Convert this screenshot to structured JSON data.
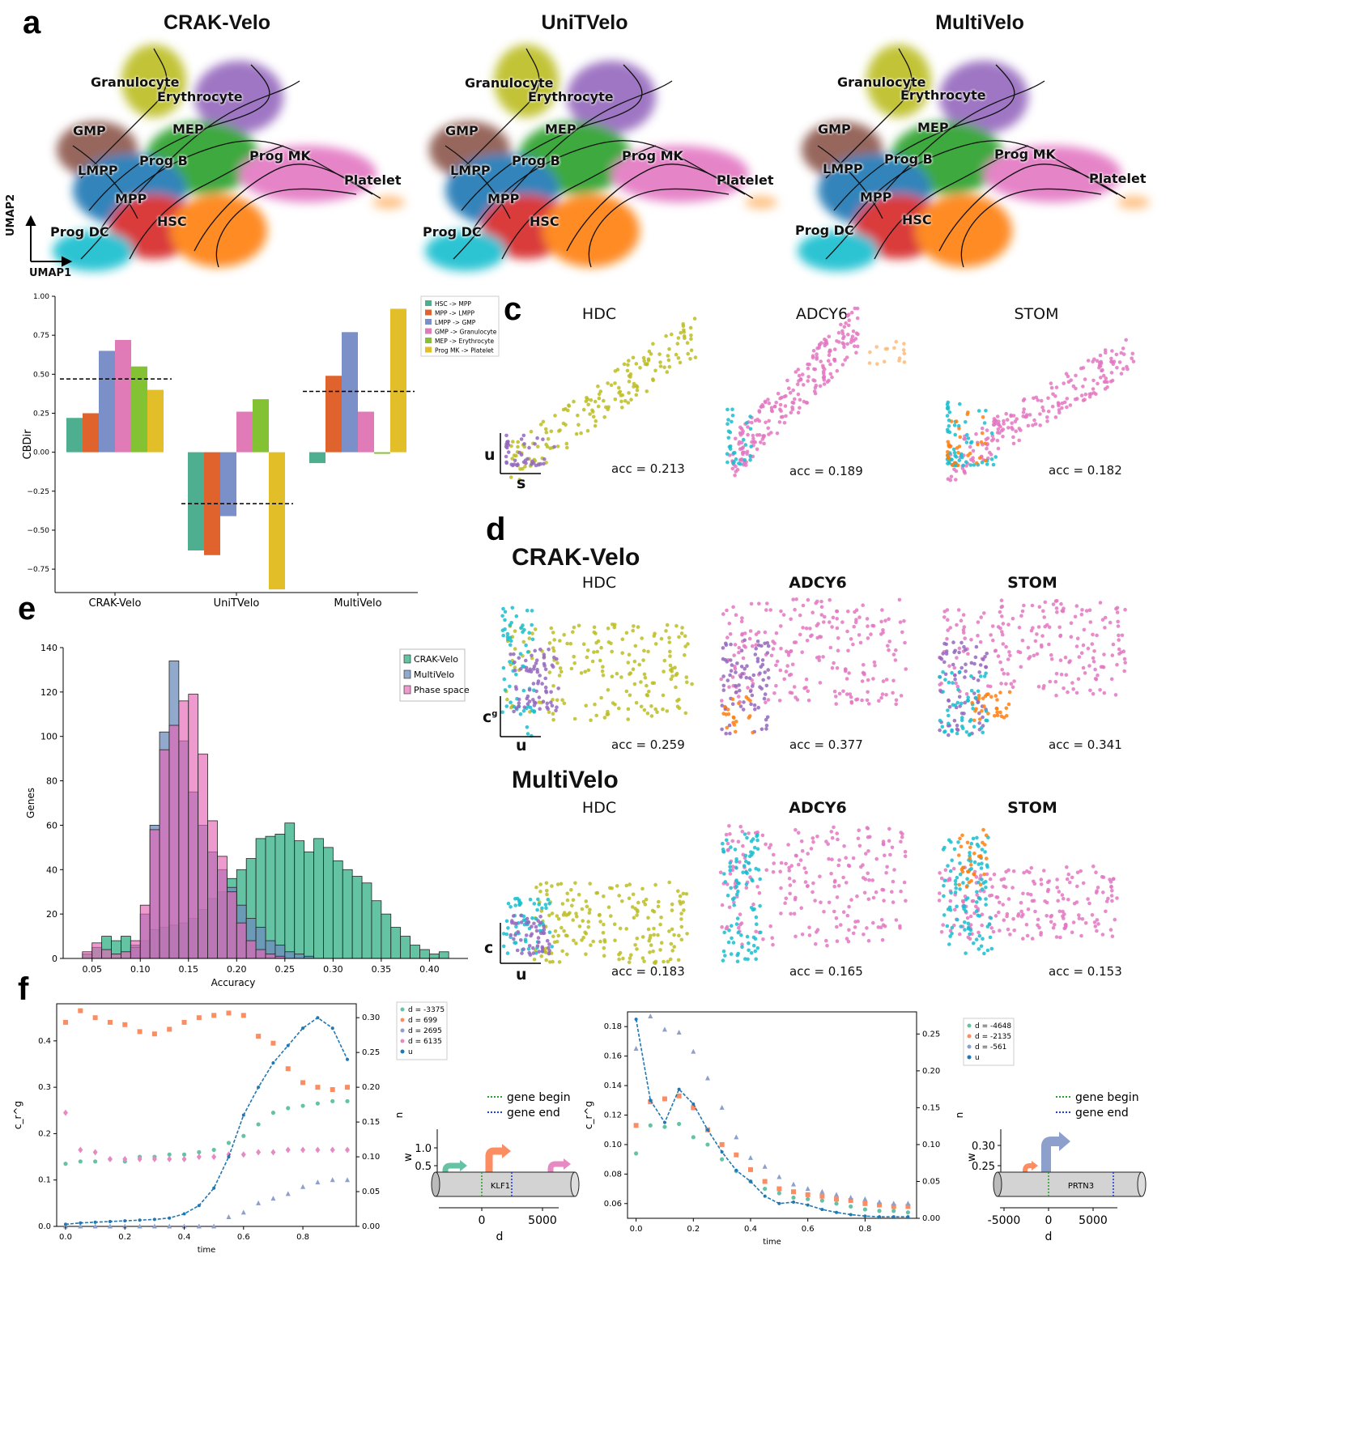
{
  "panel_letters": {
    "a": "a",
    "c": "c",
    "d": "d",
    "e": "e",
    "f": "f"
  },
  "colors": {
    "hsc": "#ff7f0e",
    "mpp": "#d62728",
    "lmpp": "#1f77b4",
    "gmp": "#8c564b",
    "granulocyte": "#bcbd22",
    "erythrocyte": "#9467bd",
    "mep": "#2ca02c",
    "prog_b": "#17becf",
    "prog_mk": "#e377c2",
    "prog_dc": "#17becf",
    "platelet": "#ffbb78",
    "bar_teal": "#4daf8f",
    "bar_orange": "#e0622c",
    "bar_blue": "#7b8fc8",
    "bar_pink": "#e07bb8",
    "bar_green": "#83c232",
    "bar_yellow": "#e2bf28"
  },
  "umap": {
    "axis_x": "UMAP1",
    "axis_y": "UMAP2",
    "panels": [
      {
        "title": "CRAK-Velo",
        "labels": [
          "Granulocyte",
          "Erythrocyte",
          "GMP",
          "MEP",
          "Prog B",
          "Prog MK",
          "LMPP",
          "MPP",
          "HSC",
          "Platelet",
          "Prog DC"
        ]
      },
      {
        "title": "UniTVelo",
        "labels": [
          "Granulocyte",
          "Erythrocyte",
          "GMP",
          "MEP",
          "Prog B",
          "Prog MK",
          "LMPP",
          "MPP",
          "HSC",
          "Platelet",
          "Prog DC"
        ]
      },
      {
        "title": "MultiVelo",
        "labels": [
          "Granulocyte",
          "Erythrocyte",
          "GMP",
          "MEP",
          "Prog B",
          "Prog MK",
          "LMPP",
          "MPP",
          "HSC",
          "Platelet",
          "Prog DC"
        ]
      }
    ]
  },
  "panel_c": {
    "genes": [
      "HDC",
      "ADCY6",
      "STOM"
    ],
    "acc": [
      "acc = 0.213",
      "acc = 0.189",
      "acc = 0.182"
    ],
    "axis_x": "s",
    "axis_y": "u"
  },
  "panel_d": {
    "crak_title": "CRAK-Velo",
    "multi_title": "MultiVelo",
    "genes": [
      "HDC",
      "ADCY6",
      "STOM"
    ],
    "crak_acc": [
      "acc = 0.259",
      "acc = 0.377",
      "acc = 0.341"
    ],
    "multi_acc": [
      "acc = 0.183",
      "acc = 0.165",
      "acc = 0.153"
    ],
    "crak_axis_x": "u",
    "crak_axis_y": "c",
    "crak_axis_y_sup": "g",
    "multi_axis_x": "u",
    "multi_axis_y": "c"
  },
  "chart_data": [
    {
      "type": "bar",
      "panel": "b",
      "ylabel": "CBDir",
      "categories": [
        "CRAK-Velo",
        "UniTVelo",
        "MultiVelo"
      ],
      "ylim": [
        -0.9,
        1.0
      ],
      "yticks": [
        "1.00",
        "0.75",
        "0.50",
        "0.25",
        "0.00",
        "−0.25",
        "−0.50",
        "−0.75"
      ],
      "ytick_values": [
        1.0,
        0.75,
        0.5,
        0.25,
        0.0,
        -0.25,
        -0.5,
        -0.75
      ],
      "series": [
        {
          "name": "HSC -> MPP",
          "values": [
            0.22,
            -0.63,
            -0.07
          ]
        },
        {
          "name": "MPP -> LMPP",
          "values": [
            0.25,
            -0.66,
            0.49
          ]
        },
        {
          "name": "LMPP -> GMP",
          "values": [
            0.65,
            -0.41,
            0.77
          ]
        },
        {
          "name": "GMP -> Granulocyte",
          "values": [
            0.72,
            0.26,
            0.26
          ]
        },
        {
          "name": "MEP -> Erythrocyte",
          "values": [
            0.55,
            0.34,
            -0.01
          ]
        },
        {
          "name": "Prog MK -> Platelet",
          "values": [
            0.4,
            -0.88,
            0.92
          ]
        }
      ],
      "mean_lines": [
        0.47,
        -0.33,
        0.39
      ],
      "legend_position": "top-right"
    },
    {
      "type": "histogram",
      "panel": "e",
      "xlabel": "Accuracy",
      "ylabel": "Genes",
      "xlim": [
        0.02,
        0.44
      ],
      "ylim": [
        0,
        140
      ],
      "xticks": [
        "0.05",
        "0.10",
        "0.15",
        "0.20",
        "0.25",
        "0.30",
        "0.35",
        "0.40"
      ],
      "xtick_values": [
        0.05,
        0.1,
        0.15,
        0.2,
        0.25,
        0.3,
        0.35,
        0.4
      ],
      "yticks": [
        "0",
        "20",
        "40",
        "60",
        "80",
        "100",
        "120",
        "140"
      ],
      "ytick_values": [
        0,
        20,
        40,
        60,
        80,
        100,
        120,
        140
      ],
      "bin_width": 0.01,
      "series": [
        {
          "name": "CRAK-Velo",
          "bin_starts": [
            0.04,
            0.05,
            0.06,
            0.07,
            0.08,
            0.09,
            0.1,
            0.11,
            0.12,
            0.13,
            0.14,
            0.15,
            0.16,
            0.17,
            0.18,
            0.19,
            0.2,
            0.21,
            0.22,
            0.23,
            0.24,
            0.25,
            0.26,
            0.27,
            0.28,
            0.29,
            0.3,
            0.31,
            0.32,
            0.33,
            0.34,
            0.35,
            0.36,
            0.37,
            0.38,
            0.39,
            0.4,
            0.41
          ],
          "counts": [
            2,
            5,
            10,
            8,
            10,
            6,
            8,
            13,
            14,
            15,
            16,
            18,
            22,
            27,
            30,
            36,
            40,
            45,
            54,
            55,
            56,
            61,
            53,
            48,
            54,
            50,
            44,
            40,
            37,
            34,
            26,
            20,
            14,
            10,
            6,
            4,
            2,
            3
          ]
        },
        {
          "name": "MultiVelo",
          "bin_starts": [
            0.09,
            0.1,
            0.11,
            0.12,
            0.13,
            0.14,
            0.15,
            0.16,
            0.17,
            0.18,
            0.19,
            0.2,
            0.21,
            0.22,
            0.23,
            0.24,
            0.25,
            0.26,
            0.27
          ],
          "counts": [
            5,
            20,
            60,
            102,
            134,
            98,
            75,
            60,
            48,
            40,
            32,
            24,
            18,
            14,
            8,
            6,
            3,
            2,
            1
          ]
        },
        {
          "name": "Phase space",
          "bin_starts": [
            0.04,
            0.05,
            0.06,
            0.07,
            0.08,
            0.09,
            0.1,
            0.11,
            0.12,
            0.13,
            0.14,
            0.15,
            0.16,
            0.17,
            0.18,
            0.19,
            0.2,
            0.21,
            0.22,
            0.23,
            0.24
          ],
          "counts": [
            3,
            7,
            4,
            2,
            3,
            8,
            24,
            58,
            94,
            105,
            116,
            119,
            92,
            62,
            46,
            30,
            16,
            8,
            4,
            2,
            1
          ]
        }
      ],
      "legend_position": "top-right"
    },
    {
      "type": "scatter",
      "panel": "f-left",
      "xlabel": "time",
      "ylabel_left": "c_r^g",
      "ylabel_right": "u",
      "x": [
        0.0,
        0.05,
        0.1,
        0.15,
        0.2,
        0.25,
        0.3,
        0.35,
        0.4,
        0.45,
        0.5,
        0.55,
        0.6,
        0.65,
        0.7,
        0.75,
        0.8,
        0.85,
        0.9,
        0.95
      ],
      "ylim_left": [
        0,
        0.48
      ],
      "ylim_right": [
        0,
        0.32
      ],
      "yticks_left": [
        "0.0",
        "0.1",
        "0.2",
        "0.3",
        "0.4"
      ],
      "yticks_right": [
        "0.00",
        "0.05",
        "0.10",
        "0.15",
        "0.20",
        "0.25",
        "0.30"
      ],
      "xticks": [
        "0.0",
        "0.2",
        "0.4",
        "0.6",
        "0.8"
      ],
      "series": [
        {
          "name": "d = -3375",
          "marker": "circle",
          "values": [
            0.135,
            0.14,
            0.14,
            0.145,
            0.14,
            0.15,
            0.15,
            0.155,
            0.155,
            0.16,
            0.165,
            0.18,
            0.195,
            0.22,
            0.245,
            0.255,
            0.26,
            0.265,
            0.27,
            0.27
          ]
        },
        {
          "name": "d = 699",
          "marker": "square",
          "values": [
            0.44,
            0.465,
            0.45,
            0.44,
            0.435,
            0.42,
            0.415,
            0.425,
            0.44,
            0.45,
            0.455,
            0.46,
            0.455,
            0.41,
            0.395,
            0.34,
            0.31,
            0.3,
            0.295,
            0.3
          ]
        },
        {
          "name": "d = 2695",
          "marker": "triangle",
          "values": [
            0.0,
            0.0,
            0.0,
            0.0,
            0.0,
            0.0,
            0.0,
            0.0,
            0.0,
            0.0,
            0.0,
            0.02,
            0.03,
            0.05,
            0.06,
            0.07,
            0.085,
            0.095,
            0.1,
            0.1
          ]
        },
        {
          "name": "d = 6135",
          "marker": "diamond",
          "values": [
            0.245,
            0.165,
            0.16,
            0.145,
            0.145,
            0.145,
            0.145,
            0.145,
            0.145,
            0.15,
            0.15,
            0.155,
            0.155,
            0.16,
            0.16,
            0.165,
            0.165,
            0.165,
            0.165,
            0.165
          ]
        },
        {
          "name": "u",
          "marker": "circle-line",
          "axis": "right",
          "values": [
            0.003,
            0.005,
            0.006,
            0.007,
            0.008,
            0.009,
            0.01,
            0.012,
            0.018,
            0.03,
            0.055,
            0.1,
            0.16,
            0.2,
            0.235,
            0.26,
            0.285,
            0.3,
            0.285,
            0.24
          ]
        }
      ]
    },
    {
      "type": "scatter",
      "panel": "f-right",
      "xlabel": "time",
      "ylabel_left": "c_r^g",
      "ylabel_right": "u",
      "x": [
        0.0,
        0.05,
        0.1,
        0.15,
        0.2,
        0.25,
        0.3,
        0.35,
        0.4,
        0.45,
        0.5,
        0.55,
        0.6,
        0.65,
        0.7,
        0.75,
        0.8,
        0.85,
        0.9,
        0.95
      ],
      "ylim_left": [
        0.05,
        0.19
      ],
      "ylim_right": [
        0,
        0.28
      ],
      "yticks_left": [
        "0.06",
        "0.08",
        "0.10",
        "0.12",
        "0.14",
        "0.16",
        "0.18"
      ],
      "yticks_right": [
        "0.00",
        "0.05",
        "0.10",
        "0.15",
        "0.20",
        "0.25"
      ],
      "xticks": [
        "0.0",
        "0.2",
        "0.4",
        "0.6",
        "0.8"
      ],
      "series": [
        {
          "name": "d = -4648",
          "marker": "circle",
          "values": [
            0.094,
            0.113,
            0.112,
            0.114,
            0.105,
            0.1,
            0.09,
            0.082,
            0.075,
            0.07,
            0.067,
            0.064,
            0.063,
            0.062,
            0.06,
            0.058,
            0.056,
            0.055,
            0.055,
            0.054
          ]
        },
        {
          "name": "d = -2135",
          "marker": "square",
          "values": [
            0.113,
            0.129,
            0.131,
            0.133,
            0.125,
            0.11,
            0.1,
            0.093,
            0.083,
            0.075,
            0.07,
            0.068,
            0.066,
            0.065,
            0.063,
            0.062,
            0.06,
            0.059,
            0.058,
            0.058
          ]
        },
        {
          "name": "d = -561",
          "marker": "triangle",
          "values": [
            0.165,
            0.187,
            0.178,
            0.176,
            0.163,
            0.145,
            0.125,
            0.105,
            0.091,
            0.085,
            0.078,
            0.073,
            0.07,
            0.068,
            0.066,
            0.064,
            0.063,
            0.061,
            0.06,
            0.06
          ]
        },
        {
          "name": "u",
          "marker": "circle-line",
          "axis": "right",
          "values": [
            0.27,
            0.16,
            0.13,
            0.175,
            0.155,
            0.12,
            0.09,
            0.065,
            0.05,
            0.03,
            0.02,
            0.022,
            0.018,
            0.012,
            0.008,
            0.005,
            0.003,
            0.002,
            0.002,
            0.002
          ]
        }
      ]
    }
  ],
  "gene_schematics": [
    {
      "gene": "KLF1",
      "ylabel": "w",
      "ylabel_sup": "g",
      "ylabel_sub": "r",
      "yticks": [
        "1.0",
        "0.5"
      ],
      "xticks": [
        "0",
        "5000"
      ],
      "xlabel": "d",
      "legend": [
        "gene begin",
        "gene end"
      ]
    },
    {
      "gene": "PRTN3",
      "ylabel": "w",
      "ylabel_sup": "g",
      "ylabel_sub": "r",
      "yticks": [
        "0.30",
        "0.25"
      ],
      "xticks": [
        "-5000",
        "0",
        "5000"
      ],
      "xlabel": "d",
      "legend": [
        "gene begin",
        "gene end"
      ]
    }
  ]
}
